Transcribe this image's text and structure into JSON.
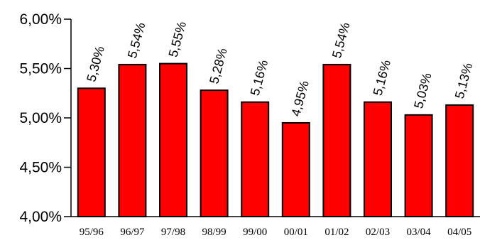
{
  "chart_data": {
    "type": "bar",
    "title": "",
    "xlabel": "",
    "ylabel": "",
    "categories": [
      "95/96",
      "96/97",
      "97/98",
      "98/99",
      "99/00",
      "00/01",
      "01/02",
      "02/03",
      "03/04",
      "04/05"
    ],
    "values": [
      5.3,
      5.54,
      5.55,
      5.28,
      5.16,
      4.95,
      5.54,
      5.16,
      5.03,
      5.13
    ],
    "data_labels": [
      "5,30%",
      "5,54%",
      "5,55%",
      "5,28%",
      "5,16%",
      "4,95%",
      "5,54%",
      "5,16%",
      "5,03%",
      "5,13%"
    ],
    "ylim": [
      4.0,
      6.0
    ],
    "yticks": [
      {
        "value": 4.0,
        "label": "4,00%"
      },
      {
        "value": 4.5,
        "label": "4,50%"
      },
      {
        "value": 5.0,
        "label": "5,00%"
      },
      {
        "value": 5.5,
        "label": "5,50%"
      },
      {
        "value": 6.0,
        "label": "6,00%"
      }
    ],
    "grid": false,
    "legend": "none",
    "bar_color": "#ff0000",
    "bar_edge_color": "#000000"
  }
}
